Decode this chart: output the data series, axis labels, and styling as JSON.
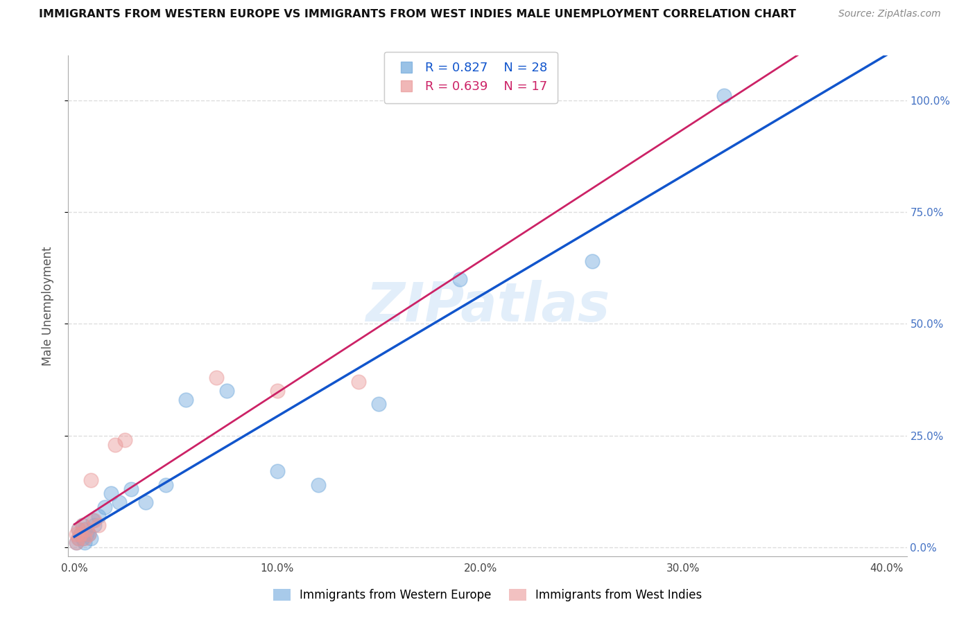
{
  "title": "IMMIGRANTS FROM WESTERN EUROPE VS IMMIGRANTS FROM WEST INDIES MALE UNEMPLOYMENT CORRELATION CHART",
  "source": "Source: ZipAtlas.com",
  "ylabel": "Male Unemployment",
  "x_tick_labels": [
    "0.0%",
    "10.0%",
    "20.0%",
    "30.0%",
    "40.0%"
  ],
  "x_tick_vals": [
    0.0,
    0.1,
    0.2,
    0.3,
    0.4
  ],
  "y_tick_labels_right": [
    "0.0%",
    "25.0%",
    "50.0%",
    "75.0%",
    "100.0%"
  ],
  "y_tick_vals": [
    0.0,
    0.25,
    0.5,
    0.75,
    1.0
  ],
  "xlim": [
    -0.003,
    0.41
  ],
  "ylim": [
    -0.02,
    1.1
  ],
  "legend_label_blue": "Immigrants from Western Europe",
  "legend_label_pink": "Immigrants from West Indies",
  "R_blue": 0.827,
  "N_blue": 28,
  "R_pink": 0.639,
  "N_pink": 17,
  "blue_scatter_x": [
    0.001,
    0.002,
    0.002,
    0.003,
    0.004,
    0.004,
    0.005,
    0.005,
    0.006,
    0.007,
    0.008,
    0.009,
    0.01,
    0.012,
    0.015,
    0.018,
    0.022,
    0.028,
    0.035,
    0.045,
    0.055,
    0.075,
    0.1,
    0.12,
    0.15,
    0.19,
    0.255,
    0.32
  ],
  "blue_scatter_y": [
    0.01,
    0.02,
    0.04,
    0.03,
    0.02,
    0.05,
    0.01,
    0.04,
    0.03,
    0.03,
    0.02,
    0.06,
    0.05,
    0.07,
    0.09,
    0.12,
    0.1,
    0.13,
    0.1,
    0.14,
    0.33,
    0.35,
    0.17,
    0.14,
    0.32,
    0.6,
    0.64,
    1.01
  ],
  "pink_scatter_x": [
    0.001,
    0.001,
    0.002,
    0.002,
    0.003,
    0.004,
    0.005,
    0.006,
    0.007,
    0.008,
    0.01,
    0.012,
    0.02,
    0.025,
    0.07,
    0.1,
    0.14
  ],
  "pink_scatter_y": [
    0.01,
    0.03,
    0.02,
    0.04,
    0.03,
    0.05,
    0.02,
    0.04,
    0.03,
    0.15,
    0.06,
    0.05,
    0.23,
    0.24,
    0.38,
    0.35,
    0.37
  ],
  "blue_color": "#6fa8dc",
  "pink_color": "#ea9999",
  "blue_line_color": "#1155cc",
  "pink_line_color": "#cc2266",
  "dashed_line_color": "#cccccc",
  "watermark_text": "ZIPatlas",
  "background_color": "#ffffff",
  "grid_color": "#dddddd"
}
